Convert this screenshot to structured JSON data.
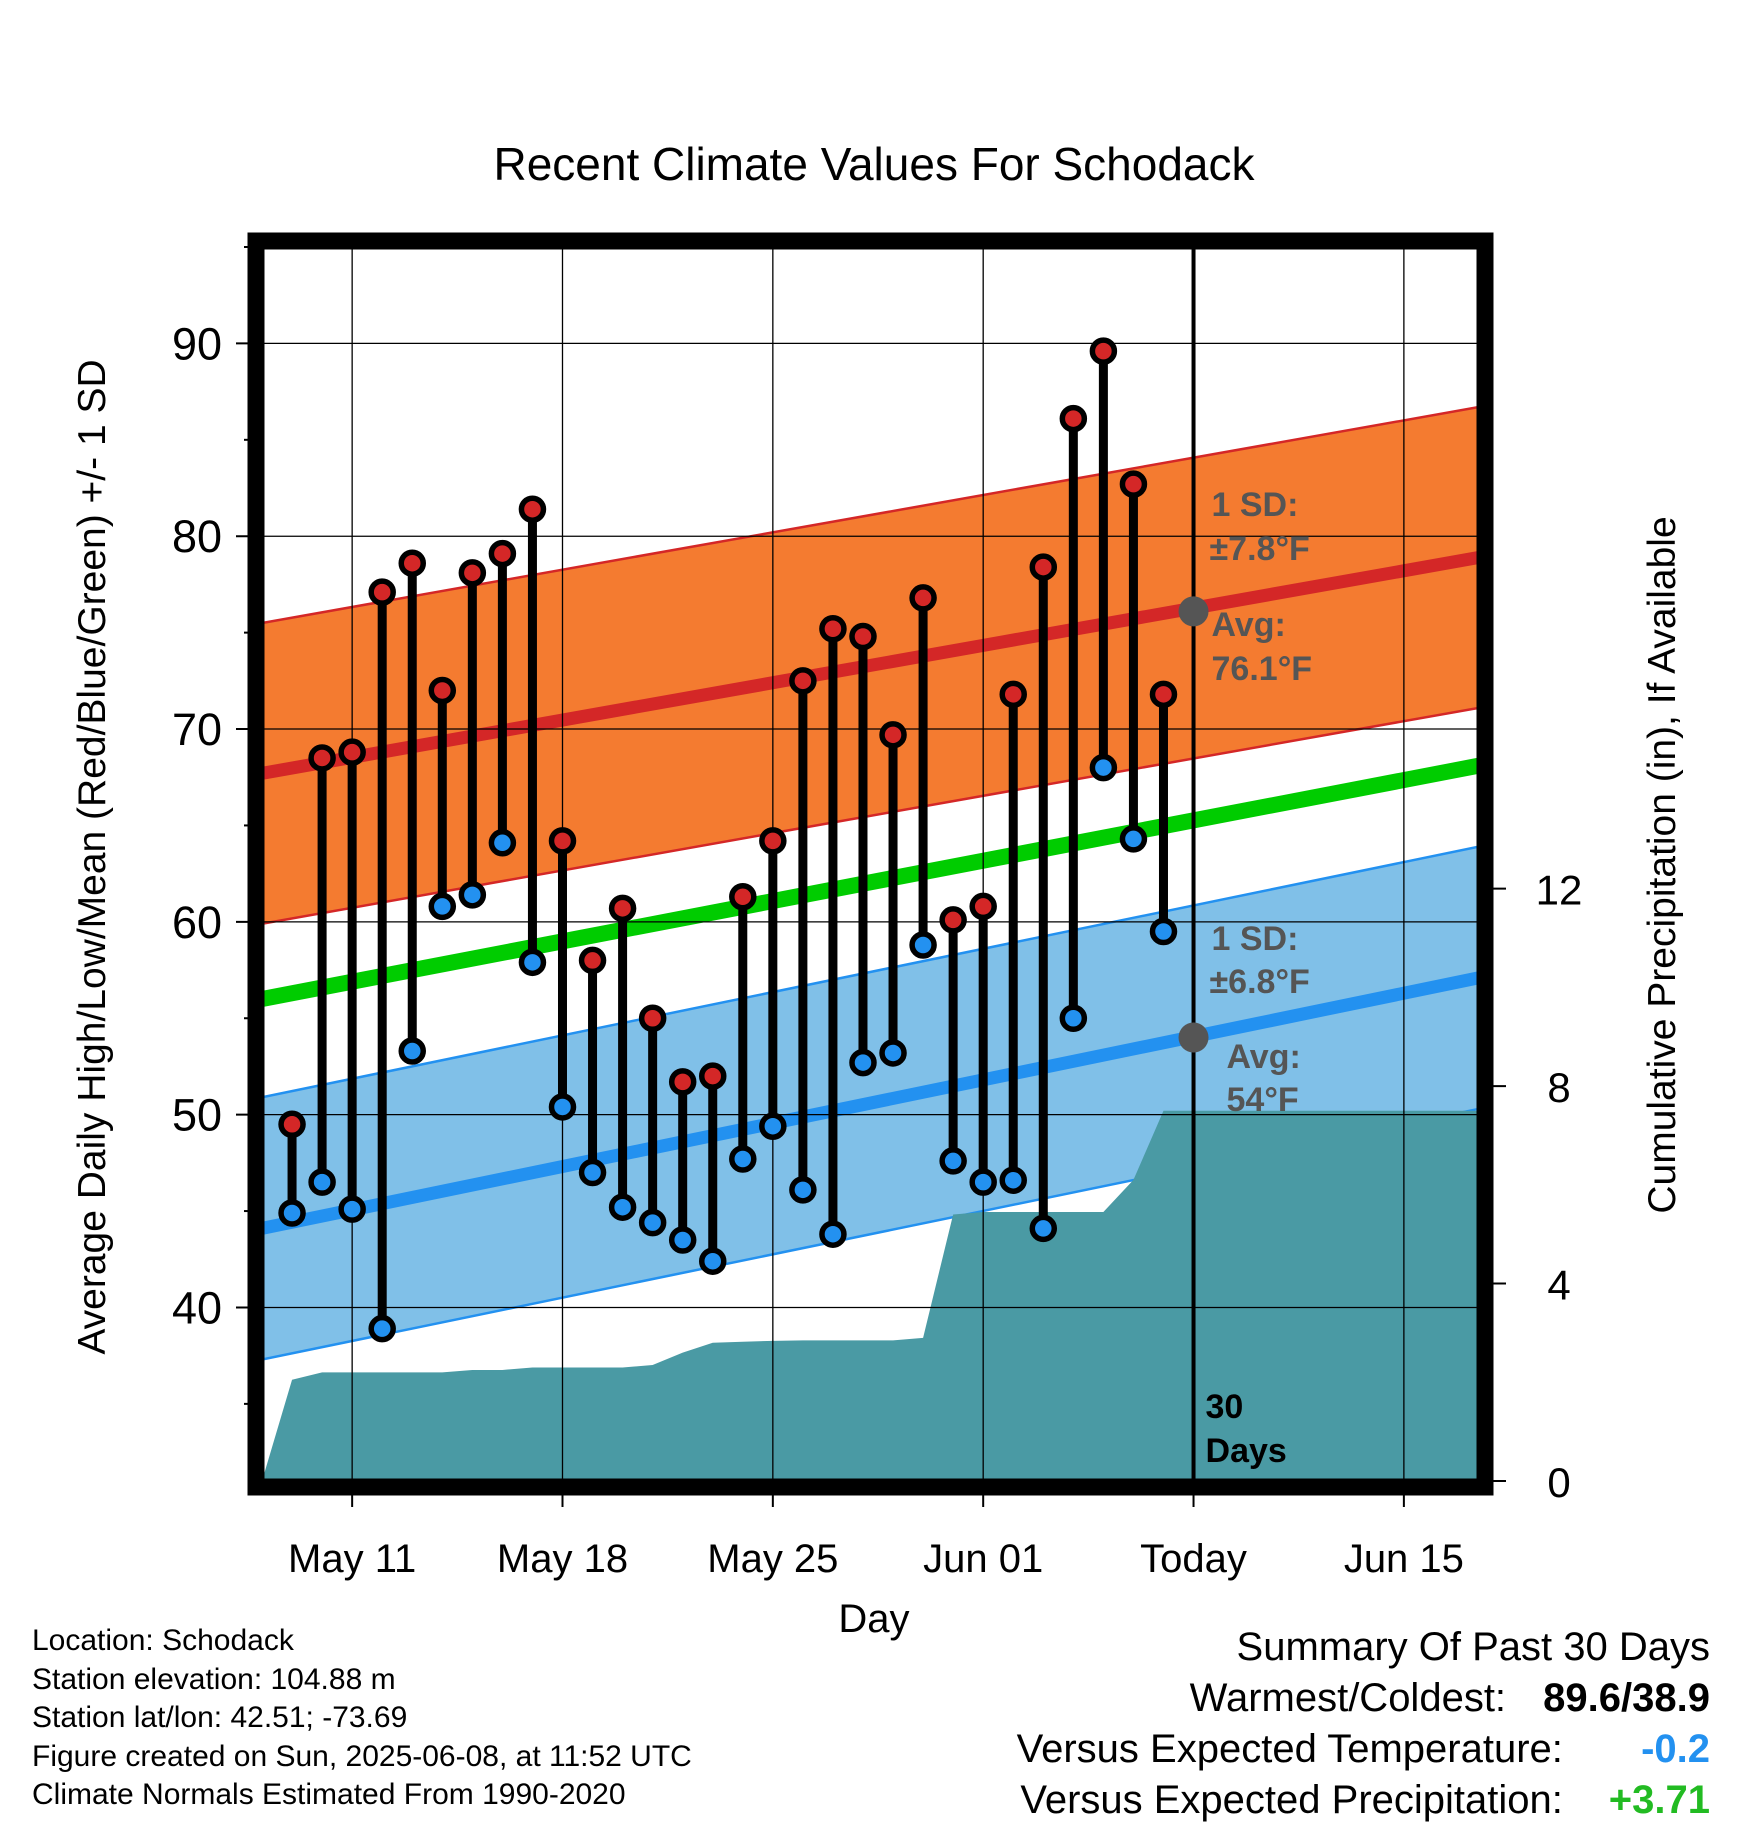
{
  "chart_data": {
    "type": "line",
    "title": "Recent Climate Values For Schodack",
    "xlabel": "Day",
    "ylabel": "Average Daily High/Low/Mean (Red/Blue/Green) +/- 1 SD",
    "ylabel_right": "Cumulative Precipitation (in), If Available",
    "x_ticks": [
      "May 11",
      "May 18",
      "May 25",
      "Jun 01",
      "Today",
      "Jun 15"
    ],
    "x_tick_days": [
      3,
      10,
      17,
      24,
      31,
      38
    ],
    "xlim": [
      0,
      40.5
    ],
    "ylim": [
      31,
      95
    ],
    "y_ticks": [
      40,
      50,
      60,
      70,
      80,
      90
    ],
    "ylim_right": [
      0,
      25
    ],
    "y_ticks_right": [
      0,
      4,
      8,
      12
    ],
    "normals": {
      "high_mean": [
        67.7,
        78.9
      ],
      "high_sd": 7.8,
      "low_mean": [
        44.1,
        57.1
      ],
      "low_sd": 6.8,
      "mean": [
        56.0,
        68.1
      ]
    },
    "series": [
      {
        "name": "High",
        "color": "#d42727",
        "x": [
          1,
          2,
          3,
          4,
          5,
          6,
          7,
          8,
          9,
          10,
          11,
          12,
          13,
          14,
          15,
          16,
          17,
          18,
          19,
          20,
          21,
          22,
          23,
          24,
          25,
          26,
          27,
          28,
          29,
          30
        ],
        "values": [
          49.5,
          68.5,
          68.8,
          77.1,
          78.6,
          72.0,
          78.1,
          79.1,
          81.4,
          64.2,
          58.0,
          60.7,
          55.0,
          51.7,
          52.0,
          61.3,
          64.2,
          72.5,
          75.2,
          74.8,
          69.7,
          76.8,
          60.1,
          60.8,
          71.8,
          78.4,
          86.1,
          89.6,
          82.7,
          71.8
        ]
      },
      {
        "name": "Low",
        "color": "#2391f0",
        "x": [
          1,
          2,
          3,
          4,
          5,
          6,
          7,
          8,
          9,
          10,
          11,
          12,
          13,
          14,
          15,
          16,
          17,
          18,
          19,
          20,
          21,
          22,
          23,
          24,
          25,
          26,
          27,
          28,
          29,
          30
        ],
        "values": [
          44.9,
          46.5,
          45.1,
          38.9,
          53.3,
          60.8,
          61.4,
          64.1,
          57.9,
          50.4,
          47.0,
          45.2,
          44.4,
          43.5,
          42.4,
          47.7,
          49.4,
          46.1,
          43.8,
          52.7,
          53.2,
          58.8,
          47.6,
          46.5,
          46.6,
          44.1,
          55.0,
          68.0,
          64.3,
          59.5
        ]
      },
      {
        "name": "Cumulative Precipitation",
        "color": "#4a9aa4",
        "x": [
          0,
          1,
          2,
          3,
          4,
          5,
          6,
          7,
          8,
          9,
          10,
          11,
          12,
          13,
          14,
          15,
          16,
          17,
          18,
          19,
          20,
          21,
          22,
          23,
          24,
          25,
          26,
          27,
          28,
          29,
          30,
          31,
          40.5
        ],
        "values": [
          0,
          2.05,
          2.2,
          2.2,
          2.2,
          2.2,
          2.2,
          2.25,
          2.25,
          2.3,
          2.3,
          2.3,
          2.3,
          2.35,
          2.6,
          2.8,
          2.82,
          2.84,
          2.85,
          2.85,
          2.85,
          2.85,
          2.9,
          5.4,
          5.45,
          5.45,
          5.45,
          5.45,
          5.45,
          6.1,
          7.5,
          7.5,
          7.5
        ]
      }
    ],
    "annotations": [
      {
        "text": "1 SD:",
        "text2": "±7.8°F"
      },
      {
        "text": "Avg:",
        "text2": "76.1°F",
        "marker_value": 76.1
      },
      {
        "text": "1 SD:",
        "text2": "±6.8°F"
      },
      {
        "text": "Avg:",
        "text2": "54°F",
        "marker_value": 54.0
      },
      {
        "text": "30",
        "text2": "Days"
      }
    ],
    "today_day": 31,
    "grid": true,
    "colors": {
      "high_band": "#f47b30",
      "high_line": "#d42727",
      "low_band": "#80c0e8",
      "low_line": "#2391f0",
      "mean_line": "#00cc00",
      "precip": "#4a9aa4",
      "annotation_text": "#555555",
      "marker": "#555555"
    }
  },
  "footer": {
    "location": "Location: Schodack",
    "elevation": "Station elevation: 104.88 m",
    "latlon": "Station lat/lon: 42.51; -73.69",
    "created": "Figure created on Sun, 2025-06-08, at 11:52 UTC",
    "normals": "Climate Normals Estimated From 1990-2020"
  },
  "summary": {
    "title": "Summary Of Past 30 Days",
    "warm_cold_label": "Warmest/Coldest:",
    "warm_cold_value": "89.6/38.9",
    "temp_label": "Versus Expected Temperature:",
    "temp_value": "-0.2",
    "temp_color": "#2391f0",
    "precip_label": "Versus Expected Precipitation:",
    "precip_value": "+3.71",
    "precip_color": "#22bb22"
  }
}
